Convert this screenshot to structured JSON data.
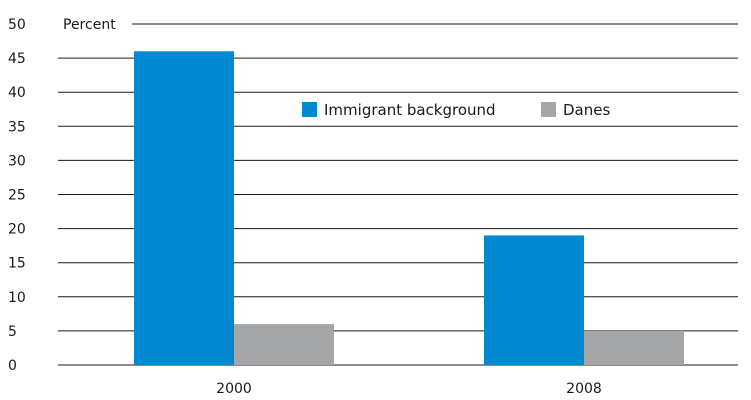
{
  "chart_data": {
    "type": "bar",
    "categories": [
      "2000",
      "2008"
    ],
    "series": [
      {
        "name": "Immigrant background",
        "values": [
          46,
          19
        ],
        "color": "#0088d1"
      },
      {
        "name": "Danes",
        "values": [
          6,
          5
        ],
        "color": "#a5a6a8"
      }
    ],
    "ylabel": "Percent",
    "ylim": [
      0,
      50
    ],
    "yticks": [
      0,
      5,
      10,
      15,
      20,
      25,
      30,
      35,
      40,
      45,
      50
    ],
    "grid": true,
    "legend_position": "top-center"
  }
}
